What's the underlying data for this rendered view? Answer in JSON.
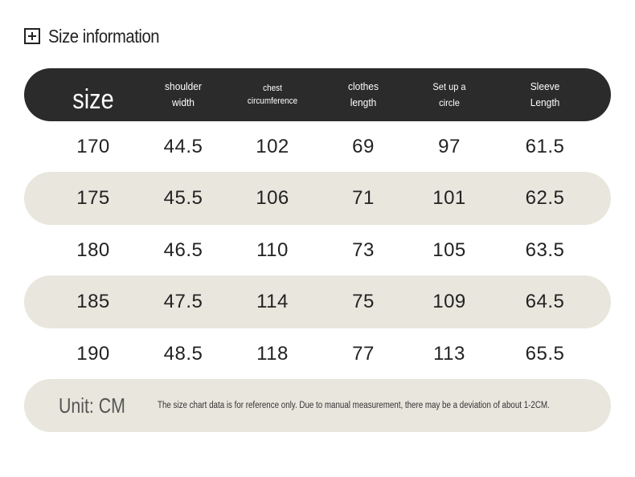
{
  "title": "Size information",
  "header": {
    "size": "size",
    "shoulder_line1": "shoulder",
    "shoulder_line2": "width",
    "chest_line1": "chest",
    "chest_line2": "circumference",
    "clothes_line1": "clothes",
    "clothes_line2": "length",
    "circle_line1": "Set up a",
    "circle_line2": "circle",
    "sleeve_line1": "Sleeve",
    "sleeve_line2": "Length"
  },
  "rows": [
    {
      "size": "170",
      "shoulder": "44.5",
      "chest": "102",
      "length": "69",
      "circle": "97",
      "sleeve": "61.5"
    },
    {
      "size": "175",
      "shoulder": "45.5",
      "chest": "106",
      "length": "71",
      "circle": "101",
      "sleeve": "62.5"
    },
    {
      "size": "180",
      "shoulder": "46.5",
      "chest": "110",
      "length": "73",
      "circle": "105",
      "sleeve": "63.5"
    },
    {
      "size": "185",
      "shoulder": "47.5",
      "chest": "114",
      "length": "75",
      "circle": "109",
      "sleeve": "64.5"
    },
    {
      "size": "190",
      "shoulder": "48.5",
      "chest": "118",
      "length": "77",
      "circle": "113",
      "sleeve": "65.5"
    }
  ],
  "footer": {
    "unit": "Unit: CM",
    "note": "The size chart data is for reference only. Due to manual measurement, there may be a deviation of about 1-2CM."
  },
  "colors": {
    "header_bg": "#2b2b2b",
    "shaded_row_bg": "#e8e6dd"
  },
  "icons": {
    "title_icon": "plus-box-icon"
  }
}
